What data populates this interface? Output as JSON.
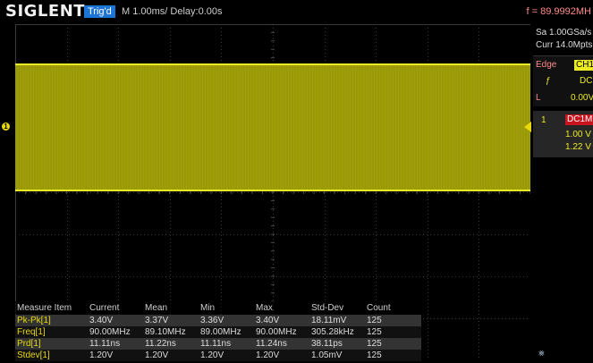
{
  "header": {
    "brand": "SIGLENT",
    "trigger_status": "Trig'd",
    "timebase": "M 1.00ms/ Delay:0.00s",
    "frequency_counter": "f = 89.9992MH"
  },
  "side_panel": {
    "sample_rate": "Sa 1.00GSa/s",
    "memory_depth": "Curr 14.0Mpts",
    "trigger": {
      "type": "Edge",
      "source": "CH1",
      "slope_icon": "rising-edge-icon",
      "coupling": "DC",
      "mode": "L",
      "level": "0.00V"
    },
    "channel": {
      "number": "1",
      "coupling": "DC1M",
      "scale": "1.00 V",
      "offset": "1.22 V"
    }
  },
  "markers": {
    "ch1_marker": "1"
  },
  "measurements": {
    "headers": [
      "Measure Item",
      "Current",
      "Mean",
      "Min",
      "Max",
      "Std-Dev",
      "Count"
    ],
    "rows": [
      [
        "Pk-Pk[1]",
        "3.40V",
        "3.37V",
        "3.36V",
        "3.40V",
        "18.11mV",
        "125"
      ],
      [
        "Freq[1]",
        "90.00MHz",
        "89.10MHz",
        "89.00MHz",
        "90.00MHz",
        "305.28kHz",
        "125"
      ],
      [
        "Prd[1]",
        "11.11ns",
        "11.22ns",
        "11.11ns",
        "11.24ns",
        "38.11ps",
        "125"
      ],
      [
        "Stdev[1]",
        "1.20V",
        "1.20V",
        "1.20V",
        "1.20V",
        "1.05mV",
        "125"
      ]
    ]
  },
  "colors": {
    "channel1": "#ecec24",
    "trigger_info": "#ff8a8a",
    "trig_status_bg": "#1b74d6",
    "coupling_bg": "#c8141e"
  }
}
